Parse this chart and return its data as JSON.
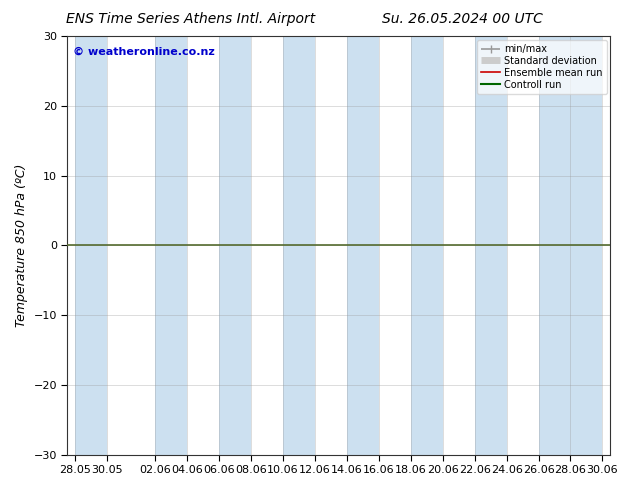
{
  "title_left": "ENS Time Series Athens Intl. Airport",
  "title_right": "Su. 26.05.2024 00 UTC",
  "ylabel": "Temperature 850 hPa (ºC)",
  "watermark": "© weatheronline.co.nz",
  "ylim": [
    -30,
    30
  ],
  "yticks": [
    -30,
    -20,
    -10,
    0,
    10,
    20,
    30
  ],
  "xlim_start": -0.5,
  "xlim_end": 33.5,
  "xtick_labels": [
    "28.05",
    "30.05",
    "02.06",
    "04.06",
    "06.06",
    "08.06",
    "10.06",
    "12.06",
    "14.06",
    "16.06",
    "18.06",
    "20.06",
    "22.06",
    "24.06",
    "26.06",
    "28.06",
    "30.06"
  ],
  "xtick_positions": [
    0,
    2,
    5,
    7,
    9,
    11,
    13,
    15,
    17,
    19,
    21,
    23,
    25,
    27,
    29,
    31,
    33
  ],
  "band_starts": [
    0,
    5,
    9,
    13,
    17,
    21,
    25,
    29
  ],
  "band_ends": [
    2,
    7,
    11,
    15,
    19,
    23,
    27,
    33
  ],
  "band_color": "#cce0f0",
  "zero_line_color": "#556b2f",
  "legend_items": [
    {
      "label": "min/max",
      "color": "#999999",
      "lw": 1.2
    },
    {
      "label": "Standard deviation",
      "color": "#cccccc",
      "lw": 5
    },
    {
      "label": "Ensemble mean run",
      "color": "#cc0000",
      "lw": 1.2
    },
    {
      "label": "Controll run",
      "color": "#006600",
      "lw": 1.5
    }
  ],
  "bg_color": "#ffffff",
  "plot_bg_color": "#ffffff",
  "title_fontsize": 10,
  "tick_fontsize": 8,
  "ylabel_fontsize": 9,
  "watermark_color": "#0000cc"
}
